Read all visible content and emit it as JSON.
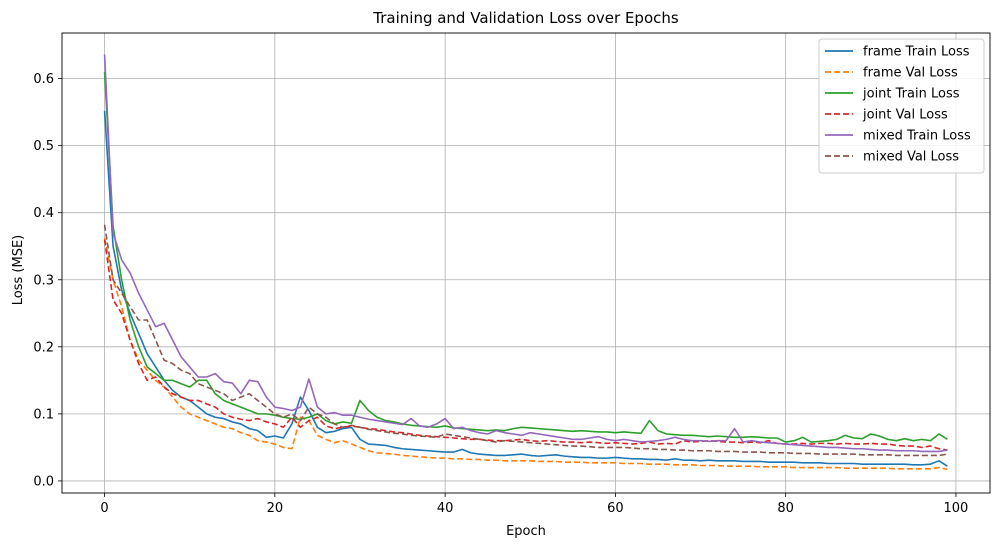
{
  "chart_data": {
    "type": "line",
    "title": "Training and Validation Loss over Epochs",
    "xlabel": "Epoch",
    "ylabel": "Loss (MSE)",
    "xlim": [
      -5,
      104
    ],
    "ylim": [
      -0.018,
      0.668
    ],
    "xticks": [
      0,
      20,
      40,
      60,
      80,
      100
    ],
    "xtick_labels": [
      "0",
      "20",
      "40",
      "60",
      "80",
      "100"
    ],
    "yticks": [
      0.0,
      0.1,
      0.2,
      0.3,
      0.4,
      0.5,
      0.6
    ],
    "ytick_labels": [
      "0.0",
      "0.1",
      "0.2",
      "0.3",
      "0.4",
      "0.5",
      "0.6"
    ],
    "grid": true,
    "legend_position": "top-right",
    "x": [
      0,
      1,
      2,
      3,
      4,
      5,
      6,
      7,
      8,
      9,
      10,
      11,
      12,
      13,
      14,
      15,
      16,
      17,
      18,
      19,
      20,
      21,
      22,
      23,
      24,
      25,
      26,
      27,
      28,
      29,
      30,
      31,
      32,
      33,
      34,
      35,
      36,
      37,
      38,
      39,
      40,
      41,
      42,
      43,
      44,
      45,
      46,
      47,
      48,
      49,
      50,
      51,
      52,
      53,
      54,
      55,
      56,
      57,
      58,
      59,
      60,
      61,
      62,
      63,
      64,
      65,
      66,
      67,
      68,
      69,
      70,
      71,
      72,
      73,
      74,
      75,
      76,
      77,
      78,
      79,
      80,
      81,
      82,
      83,
      84,
      85,
      86,
      87,
      88,
      89,
      90,
      91,
      92,
      93,
      94,
      95,
      96,
      97,
      98,
      99
    ],
    "series": [
      {
        "name": "frame Train Loss",
        "color": "#1f77b4",
        "dash": "solid",
        "values": [
          0.552,
          0.35,
          0.285,
          0.25,
          0.22,
          0.19,
          0.17,
          0.15,
          0.135,
          0.125,
          0.12,
          0.11,
          0.1,
          0.095,
          0.093,
          0.088,
          0.085,
          0.078,
          0.075,
          0.065,
          0.067,
          0.064,
          0.085,
          0.125,
          0.105,
          0.08,
          0.072,
          0.074,
          0.078,
          0.08,
          0.062,
          0.055,
          0.054,
          0.053,
          0.05,
          0.048,
          0.047,
          0.046,
          0.045,
          0.044,
          0.043,
          0.043,
          0.047,
          0.042,
          0.04,
          0.039,
          0.038,
          0.038,
          0.039,
          0.04,
          0.038,
          0.037,
          0.038,
          0.039,
          0.037,
          0.036,
          0.035,
          0.035,
          0.034,
          0.034,
          0.035,
          0.034,
          0.033,
          0.033,
          0.032,
          0.032,
          0.031,
          0.033,
          0.031,
          0.031,
          0.03,
          0.031,
          0.03,
          0.03,
          0.03,
          0.029,
          0.029,
          0.029,
          0.028,
          0.028,
          0.028,
          0.028,
          0.027,
          0.027,
          0.027,
          0.026,
          0.026,
          0.026,
          0.026,
          0.025,
          0.025,
          0.025,
          0.025,
          0.025,
          0.025,
          0.024,
          0.024,
          0.025,
          0.03,
          0.022
        ]
      },
      {
        "name": "frame Val Loss",
        "color": "#ff7f0e",
        "dash": "dashed",
        "values": [
          0.362,
          0.3,
          0.26,
          0.21,
          0.18,
          0.165,
          0.15,
          0.14,
          0.125,
          0.11,
          0.1,
          0.095,
          0.09,
          0.085,
          0.08,
          0.078,
          0.072,
          0.068,
          0.06,
          0.058,
          0.055,
          0.05,
          0.048,
          0.095,
          0.09,
          0.068,
          0.062,
          0.057,
          0.06,
          0.055,
          0.05,
          0.045,
          0.042,
          0.041,
          0.04,
          0.038,
          0.037,
          0.036,
          0.035,
          0.034,
          0.034,
          0.033,
          0.033,
          0.032,
          0.032,
          0.031,
          0.031,
          0.03,
          0.03,
          0.03,
          0.03,
          0.029,
          0.029,
          0.029,
          0.028,
          0.028,
          0.028,
          0.027,
          0.027,
          0.027,
          0.027,
          0.026,
          0.026,
          0.026,
          0.025,
          0.025,
          0.025,
          0.024,
          0.024,
          0.024,
          0.023,
          0.023,
          0.023,
          0.022,
          0.022,
          0.022,
          0.022,
          0.021,
          0.021,
          0.021,
          0.021,
          0.02,
          0.02,
          0.02,
          0.02,
          0.02,
          0.02,
          0.019,
          0.019,
          0.019,
          0.019,
          0.019,
          0.019,
          0.018,
          0.018,
          0.018,
          0.018,
          0.018,
          0.02,
          0.017
        ]
      },
      {
        "name": "joint Train Loss",
        "color": "#2ca02c",
        "dash": "solid",
        "values": [
          0.61,
          0.38,
          0.3,
          0.24,
          0.2,
          0.17,
          0.16,
          0.15,
          0.15,
          0.145,
          0.14,
          0.15,
          0.15,
          0.13,
          0.12,
          0.115,
          0.11,
          0.105,
          0.1,
          0.1,
          0.098,
          0.095,
          0.093,
          0.092,
          0.095,
          0.1,
          0.09,
          0.085,
          0.088,
          0.086,
          0.12,
          0.105,
          0.095,
          0.09,
          0.088,
          0.085,
          0.083,
          0.082,
          0.081,
          0.08,
          0.082,
          0.079,
          0.078,
          0.077,
          0.076,
          0.075,
          0.076,
          0.075,
          0.078,
          0.08,
          0.079,
          0.078,
          0.077,
          0.076,
          0.075,
          0.074,
          0.075,
          0.074,
          0.073,
          0.073,
          0.072,
          0.073,
          0.072,
          0.071,
          0.09,
          0.075,
          0.07,
          0.069,
          0.068,
          0.068,
          0.067,
          0.066,
          0.067,
          0.066,
          0.065,
          0.065,
          0.066,
          0.065,
          0.064,
          0.064,
          0.058,
          0.06,
          0.065,
          0.058,
          0.059,
          0.06,
          0.062,
          0.068,
          0.064,
          0.063,
          0.07,
          0.067,
          0.062,
          0.06,
          0.063,
          0.06,
          0.062,
          0.06,
          0.07,
          0.062
        ]
      },
      {
        "name": "joint Val Loss",
        "color": "#d62728",
        "dash": "dashed",
        "values": [
          0.36,
          0.27,
          0.25,
          0.21,
          0.175,
          0.15,
          0.155,
          0.14,
          0.13,
          0.125,
          0.12,
          0.12,
          0.115,
          0.11,
          0.1,
          0.095,
          0.092,
          0.09,
          0.093,
          0.088,
          0.085,
          0.08,
          0.095,
          0.08,
          0.09,
          0.095,
          0.082,
          0.078,
          0.08,
          0.082,
          0.08,
          0.078,
          0.077,
          0.075,
          0.073,
          0.072,
          0.07,
          0.068,
          0.067,
          0.066,
          0.065,
          0.064,
          0.063,
          0.062,
          0.062,
          0.061,
          0.06,
          0.06,
          0.061,
          0.062,
          0.06,
          0.059,
          0.06,
          0.059,
          0.058,
          0.058,
          0.057,
          0.058,
          0.057,
          0.056,
          0.057,
          0.056,
          0.055,
          0.056,
          0.058,
          0.055,
          0.056,
          0.055,
          0.06,
          0.058,
          0.059,
          0.06,
          0.059,
          0.058,
          0.058,
          0.057,
          0.058,
          0.057,
          0.06,
          0.056,
          0.055,
          0.055,
          0.056,
          0.055,
          0.056,
          0.056,
          0.055,
          0.056,
          0.055,
          0.055,
          0.056,
          0.055,
          0.055,
          0.053,
          0.052,
          0.052,
          0.05,
          0.052,
          0.048,
          0.046
        ]
      },
      {
        "name": "mixed Train Loss",
        "color": "#9467bd",
        "dash": "solid",
        "values": [
          0.636,
          0.37,
          0.33,
          0.31,
          0.28,
          0.255,
          0.23,
          0.235,
          0.21,
          0.185,
          0.17,
          0.155,
          0.155,
          0.16,
          0.148,
          0.146,
          0.13,
          0.15,
          0.148,
          0.125,
          0.11,
          0.108,
          0.105,
          0.11,
          0.152,
          0.11,
          0.1,
          0.102,
          0.098,
          0.098,
          0.095,
          0.092,
          0.09,
          0.088,
          0.086,
          0.084,
          0.093,
          0.082,
          0.08,
          0.085,
          0.093,
          0.078,
          0.08,
          0.075,
          0.072,
          0.07,
          0.075,
          0.072,
          0.07,
          0.068,
          0.072,
          0.07,
          0.068,
          0.066,
          0.064,
          0.062,
          0.062,
          0.064,
          0.066,
          0.062,
          0.06,
          0.062,
          0.06,
          0.058,
          0.059,
          0.06,
          0.062,
          0.065,
          0.062,
          0.06,
          0.06,
          0.059,
          0.06,
          0.06,
          0.078,
          0.058,
          0.06,
          0.058,
          0.057,
          0.056,
          0.055,
          0.054,
          0.053,
          0.052,
          0.051,
          0.05,
          0.05,
          0.049,
          0.048,
          0.048,
          0.047,
          0.046,
          0.046,
          0.045,
          0.045,
          0.045,
          0.044,
          0.044,
          0.044,
          0.046
        ]
      },
      {
        "name": "mixed Val Loss",
        "color": "#8c564b",
        "dash": "dashed",
        "values": [
          0.382,
          0.3,
          0.28,
          0.26,
          0.24,
          0.24,
          0.21,
          0.18,
          0.175,
          0.165,
          0.16,
          0.145,
          0.14,
          0.135,
          0.13,
          0.12,
          0.125,
          0.13,
          0.12,
          0.11,
          0.1,
          0.095,
          0.1,
          0.09,
          0.11,
          0.1,
          0.095,
          0.085,
          0.08,
          0.083,
          0.08,
          0.077,
          0.075,
          0.073,
          0.071,
          0.07,
          0.068,
          0.067,
          0.066,
          0.065,
          0.07,
          0.068,
          0.066,
          0.064,
          0.062,
          0.06,
          0.058,
          0.06,
          0.059,
          0.058,
          0.057,
          0.056,
          0.055,
          0.054,
          0.053,
          0.052,
          0.052,
          0.051,
          0.05,
          0.05,
          0.05,
          0.05,
          0.049,
          0.048,
          0.048,
          0.047,
          0.047,
          0.046,
          0.046,
          0.045,
          0.045,
          0.045,
          0.044,
          0.044,
          0.044,
          0.043,
          0.043,
          0.043,
          0.042,
          0.042,
          0.042,
          0.041,
          0.041,
          0.041,
          0.04,
          0.04,
          0.04,
          0.04,
          0.04,
          0.039,
          0.039,
          0.039,
          0.039,
          0.038,
          0.038,
          0.038,
          0.038,
          0.038,
          0.038,
          0.04
        ]
      }
    ]
  }
}
